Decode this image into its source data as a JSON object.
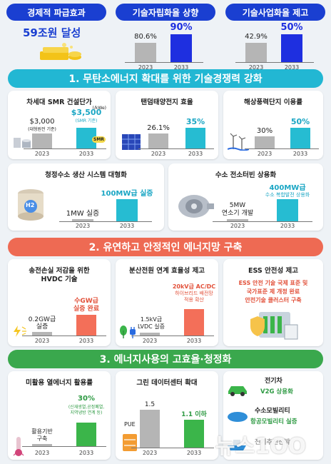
{
  "colors": {
    "blue": "#1a3fd1",
    "teal": "#26bcd2",
    "red": "#ee6a53",
    "green": "#3aa84d",
    "gray": "#b5b5b5",
    "darkblue": "#1e2fe0"
  },
  "top": {
    "effect_title": "경제적 파급효과",
    "effect_value": "59조원 달성",
    "self_title": "기술자립화율 상향",
    "self_values": [
      "80.6%",
      "90%"
    ],
    "self_levels": [
      0.806,
      0.9
    ],
    "biz_title": "기술사업화율 제고",
    "biz_values": [
      "42.9%",
      "50%"
    ],
    "biz_levels": [
      0.429,
      0.5
    ],
    "years": [
      "2023",
      "2033"
    ]
  },
  "sec1": {
    "title": "1. 무탄소에너지 확대를 위한 기술경쟁력 강화",
    "smr": {
      "title": "차세대 SMR 건설단가",
      "unit": "(/kWe)",
      "v1": "$3,000",
      "n1": "(대형원전 기준)",
      "v2": "$3,500",
      "n2": "(SMR 기준)",
      "badge": "SMR"
    },
    "tandem": {
      "title": "탠덤태양전지 효율",
      "v1": "26.1%",
      "v2": "35%"
    },
    "wind": {
      "title": "해상풍력단지 이용률",
      "v1": "30%",
      "v2": "50%"
    },
    "h2sys": {
      "title": "청정수소 생산 시스템 대형화",
      "v1": "1MW 실증",
      "v2": "100MW급 실증",
      "tag": "H2"
    },
    "turbine": {
      "title": "수소 전소터빈 상용화",
      "v1a": "5MW",
      "v1b": "연소기 개발",
      "v2a": "400MW급",
      "v2b": "수소 복합발전 상용화"
    }
  },
  "sec2": {
    "title": "2. 유연하고 안정적인 에너지망 구축",
    "hvdc": {
      "title1": "송전손실 저감을 위한",
      "title2": "HVDC 기술",
      "v1a": "0.2GW급",
      "v1b": "실증",
      "v2a": "수GW급",
      "v2b": "실증 완료"
    },
    "dist": {
      "title": "분산전원 연계 효율성 제고",
      "v1a": "1.5kV급",
      "v1b": "LVDC 실증",
      "v2a": "20kV급 AC/DC",
      "v2b": "하이브리드 배전망",
      "v2c": "적용 확산"
    },
    "ess": {
      "title": "ESS 안전성 제고",
      "l1": "ESS 안전 기술 국제 표준 및",
      "l2": "국가표준 제 개정 완료",
      "l3": "안전기술 클러스터 구축"
    }
  },
  "sec3": {
    "title": "3. 에너지사용의 고효율·청정화",
    "heat": {
      "title": "미활용 열에너지 활용률",
      "v1a": "활용기반",
      "v1b": "구축",
      "v2": "30%",
      "n1": "(신재생열,공정폐열,",
      "n2": "지역냉방 연계 등)"
    },
    "dc": {
      "title": "그린 데이터센터 확대",
      "pue": "PUE",
      "v1": "1.5",
      "v2": "1.1 이하",
      "l1": 1.5,
      "l2": 1.1
    },
    "mob": {
      "t1": "전기차",
      "s1": "V2G 상용화",
      "t2": "수소모빌리티",
      "s2": "항공모빌리티 실증",
      "t3": "전기추진선박"
    }
  },
  "watermark": "뉴스1OO"
}
